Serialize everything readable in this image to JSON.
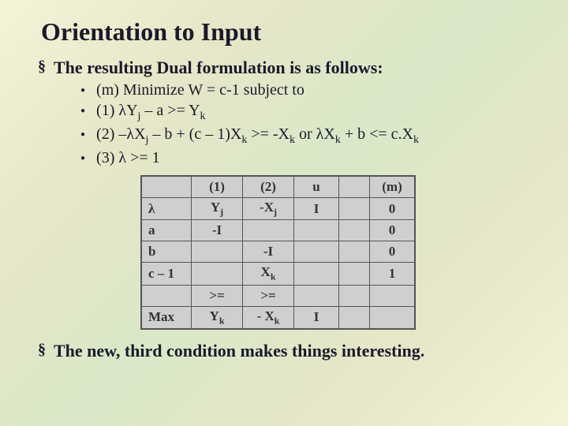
{
  "title": "Orientation to Input",
  "intro": {
    "mark": "§",
    "text": "The resulting Dual formulation is as follows:"
  },
  "bullets": [
    {
      "dot": "●",
      "text_html": "(m) Minimize W = c-1    subject to"
    },
    {
      "dot": "●",
      "text_html": "(1) λY<sub>j</sub> – a >= Y<sub>k</sub>"
    },
    {
      "dot": "●",
      "text_html": "(2) –λX<sub>j</sub> – b + (c – 1)X<sub>k</sub> >= -X<sub>k</sub>   or   λX<sub>k</sub> + b <= c.X<sub>k</sub>"
    },
    {
      "dot": "●",
      "text_html": "(3) λ >= 1"
    }
  ],
  "table": {
    "rows": [
      [
        "",
        "(1)",
        "(2)",
        "u",
        "",
        "(m)"
      ],
      [
        "λ",
        "Y<sub>j</sub>",
        "-X<sub>j</sub>",
        "I",
        "",
        "0"
      ],
      [
        "a",
        "-I",
        "",
        "",
        "",
        "0"
      ],
      [
        "b",
        "",
        "-I",
        "",
        "",
        "0"
      ],
      [
        "c – 1",
        "",
        "X<sub>k</sub>",
        "",
        "",
        "1"
      ],
      [
        "",
        ">=",
        ">=",
        "",
        "",
        ""
      ],
      [
        "Max",
        "Y<sub>k</sub>",
        "- X<sub>k</sub>",
        "I",
        "",
        ""
      ]
    ]
  },
  "closing": {
    "mark": "§",
    "text": "The new, third condition makes things interesting."
  }
}
